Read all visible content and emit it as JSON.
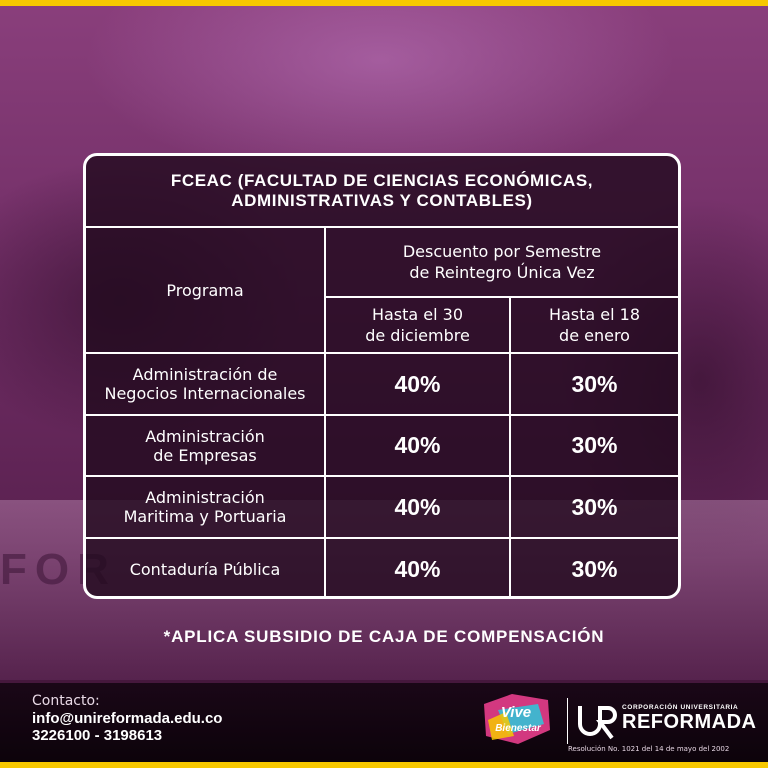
{
  "card": {
    "title_line1": "FCEAC (FACULTAD DE CIENCIAS ECONÓMICAS,",
    "title_line2": "ADMINISTRATIVAS Y CONTABLES)",
    "col_program": "Programa",
    "col_discount_line1": "Descuento por Semestre",
    "col_discount_line2": "de Reintegro Única Vez",
    "sub_a_line1": "Hasta el 30",
    "sub_a_line2": "de diciembre",
    "sub_b_line1": "Hasta el 18",
    "sub_b_line2": "de enero",
    "rows": [
      {
        "line1": "Administración de",
        "line2": "Negocios Internacionales",
        "a": "40%",
        "b": "30%"
      },
      {
        "line1": "Administración",
        "line2": "de Empresas",
        "a": "40%",
        "b": "30%"
      },
      {
        "line1": "Administración",
        "line2": "Maritima y Portuaria",
        "a": "40%",
        "b": "30%"
      },
      {
        "line1": "Contaduría Pública",
        "line2": "",
        "a": "40%",
        "b": "30%"
      }
    ]
  },
  "note": "*APLICA SUBSIDIO DE CAJA DE COMPENSACIÓN",
  "footer": {
    "contact_label": "Contacto:",
    "email": "info@unireformada.edu.co",
    "phones": "3226100 - 3198613",
    "vb_logo_line1": "Vive",
    "vb_logo_line2": "Bienestar",
    "ur_mark": "UR",
    "brand_corp": "CORPORACIÓN UNIVERSITARIA",
    "brand_name": "REFORMADA",
    "resolution": "Resolución No. 1021 del 14 de mayo del 2002"
  },
  "colors": {
    "accent_yellow": "#f7c800",
    "background_purple": "#6d2d63",
    "card_dark": "#220a1e"
  },
  "background_text": "FOR"
}
